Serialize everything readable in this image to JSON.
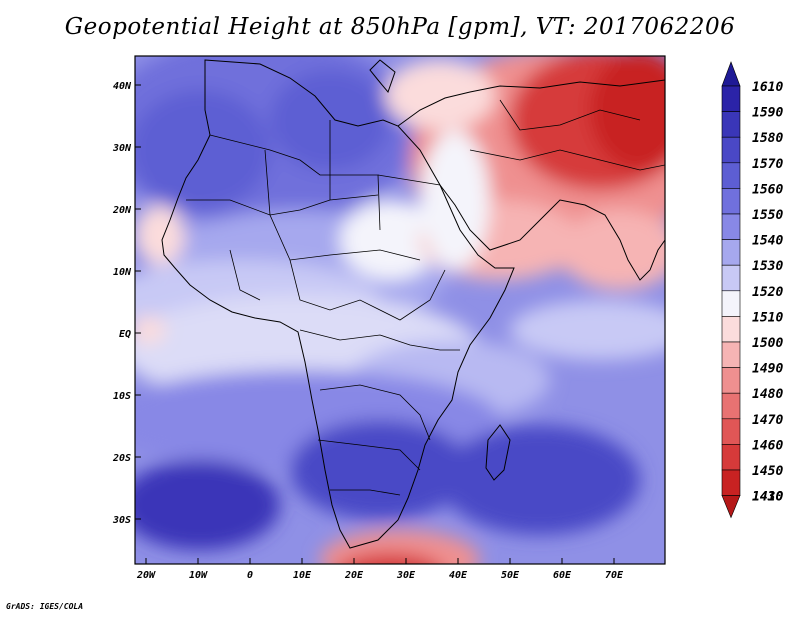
{
  "title": "Geopotential Height at 850hPa [gpm], VT: 2017062206",
  "credit": "GrADS: IGES/COLA",
  "x_ticks": [
    "20W",
    "10W",
    "0",
    "10E",
    "20E",
    "30E",
    "40E",
    "50E",
    "60E",
    "70E"
  ],
  "y_ticks": [
    "40N",
    "30N",
    "20N",
    "10N",
    "EQ",
    "10S",
    "20S",
    "30S"
  ],
  "colorbar": {
    "top_value": "1610",
    "levels": [
      {
        "label": "1590",
        "color": "#2b23a8"
      },
      {
        "label": "1580",
        "color": "#3a36b8"
      },
      {
        "label": "1570",
        "color": "#4a48c6"
      },
      {
        "label": "1560",
        "color": "#5d5ed3"
      },
      {
        "label": "1550",
        "color": "#7070dd"
      },
      {
        "label": "1540",
        "color": "#8888e6"
      },
      {
        "label": "1530",
        "color": "#a6a8ee"
      },
      {
        "label": "1520",
        "color": "#c8c9f5"
      },
      {
        "label": "1510",
        "color": "#f4f4fb"
      },
      {
        "label": "1500",
        "color": "#fbdcdc"
      },
      {
        "label": "1490",
        "color": "#f6b4b4"
      },
      {
        "label": "1480",
        "color": "#ef9090"
      },
      {
        "label": "1470",
        "color": "#e87272"
      },
      {
        "label": "1460",
        "color": "#e05656"
      },
      {
        "label": "1450",
        "color": "#d63a3a"
      },
      {
        "label": "1430",
        "color": "#c82222"
      },
      {
        "label": "1410",
        "color": "#b51818"
      }
    ]
  }
}
